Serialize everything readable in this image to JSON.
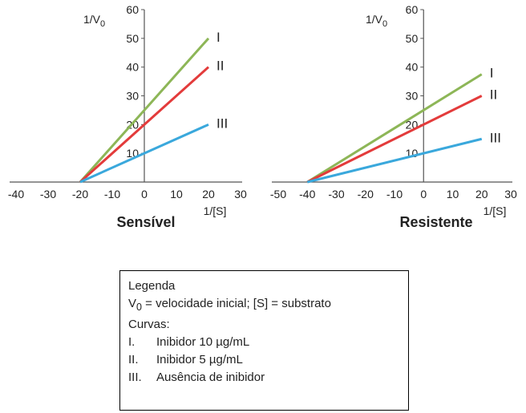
{
  "chart_data": [
    {
      "type": "line",
      "title": "Sensível",
      "xlabel": "1/[S]",
      "ylabel": "1/V",
      "ylabel_sub": "0",
      "xlim": [
        -40,
        30
      ],
      "ylim": [
        0,
        60
      ],
      "x_ticks": [
        "-40",
        "-30",
        "-20",
        "-10",
        "0",
        "10",
        "20",
        "30"
      ],
      "y_ticks": [
        "10",
        "20",
        "30",
        "40",
        "50",
        "60"
      ],
      "series": [
        {
          "name": "I",
          "color": "#8db657",
          "x": [
            -20,
            20
          ],
          "y": [
            0,
            50
          ]
        },
        {
          "name": "II",
          "color": "#e33b3b",
          "x": [
            -20,
            20
          ],
          "y": [
            0,
            40
          ]
        },
        {
          "name": "III",
          "color": "#3aa8dc",
          "x": [
            -20,
            20
          ],
          "y": [
            0,
            20
          ]
        }
      ]
    },
    {
      "type": "line",
      "title": "Resistente",
      "xlabel": "1/[S]",
      "ylabel": "1/V",
      "ylabel_sub": "0",
      "xlim": [
        -50,
        30
      ],
      "ylim": [
        0,
        60
      ],
      "x_ticks": [
        "-50",
        "-40",
        "-30",
        "-20",
        "-10",
        "0",
        "10",
        "20",
        "30"
      ],
      "y_ticks": [
        "10",
        "20",
        "30",
        "40",
        "50",
        "60"
      ],
      "series": [
        {
          "name": "I",
          "color": "#8db657",
          "x": [
            -40,
            20
          ],
          "y": [
            0,
            37.5
          ]
        },
        {
          "name": "II",
          "color": "#e33b3b",
          "x": [
            -40,
            20
          ],
          "y": [
            0,
            30
          ]
        },
        {
          "name": "III",
          "color": "#3aa8dc",
          "x": [
            -40,
            20
          ],
          "y": [
            0,
            15
          ]
        }
      ]
    }
  ],
  "legend": {
    "title": "Legenda",
    "line1_v": "V",
    "line1_sub": "0",
    "line1_rest": " = velocidade inicial; [S] = substrato",
    "curves_label": "Curvas:",
    "items": [
      {
        "num": "I.",
        "text": "Inibidor 10 µg/mL"
      },
      {
        "num": "II.",
        "text": "Inibidor 5 µg/mL"
      },
      {
        "num": "III.",
        "text": "Ausência de inibidor"
      }
    ]
  }
}
